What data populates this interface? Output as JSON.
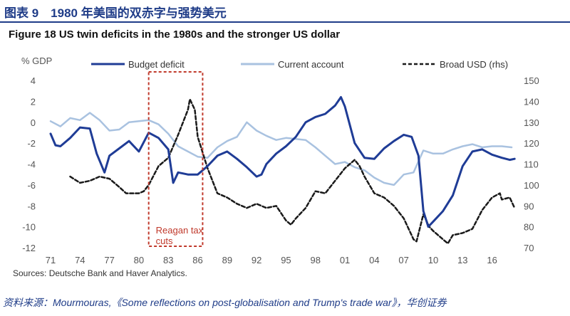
{
  "figure_title": "图表 9　1980 年美国的双赤字与强势美元",
  "source": "资料来源：Mourmouras,《Some reflections on post-globalisation and Trump's trade war》，华创证券",
  "chart_data": {
    "type": "line",
    "title": "Figure 18 US twin deficits in the 1980s and the stronger US dollar",
    "ylabel": "% GDP",
    "ylim": [
      -12,
      4
    ],
    "y_ticks": [
      "4",
      "2",
      "0",
      "-2",
      "-4",
      "-6",
      "-8",
      "-10",
      "-12"
    ],
    "y2lim": [
      70,
      150
    ],
    "y2_ticks": [
      "150",
      "140",
      "130",
      "120",
      "110",
      "100",
      "90",
      "80",
      "70"
    ],
    "xlim": [
      1971,
      2018.5
    ],
    "x_ticks": [
      "71",
      "74",
      "77",
      "80",
      "83",
      "86",
      "89",
      "92",
      "95",
      "98",
      "01",
      "04",
      "07",
      "10",
      "13",
      "16"
    ],
    "source_note": "Sources: Deutsche Bank and Haver Analytics.",
    "highlight": {
      "label": "Reagan tax cuts",
      "x_range": [
        1981,
        1986.5
      ]
    },
    "series": [
      {
        "name": "Budget deficit",
        "axis": "left",
        "color": "#1f3c96",
        "style": "solid",
        "x": [
          1971,
          1971.5,
          1972,
          1973,
          1974,
          1975,
          1975.7,
          1976.5,
          1977,
          1978,
          1979,
          1980,
          1981,
          1982,
          1983,
          1983.5,
          1984,
          1985,
          1986,
          1987,
          1988,
          1989,
          1990,
          1991,
          1992,
          1992.5,
          1993,
          1994,
          1995,
          1996,
          1997,
          1998,
          1999,
          2000,
          2000.6,
          2001,
          2002,
          2003,
          2004,
          2005,
          2006,
          2007,
          2007.8,
          2008.5,
          2009,
          2009.5,
          2010,
          2011,
          2012,
          2013,
          2014,
          2015,
          2016,
          2017,
          2017.8,
          2018.3
        ],
        "values": [
          -1.1,
          -2.2,
          -2.3,
          -1.5,
          -0.5,
          -0.6,
          -3.0,
          -4.8,
          -3.2,
          -2.5,
          -1.8,
          -2.8,
          -1.0,
          -1.5,
          -2.6,
          -5.8,
          -4.8,
          -5.0,
          -5.0,
          -4.2,
          -3.2,
          -2.8,
          -3.5,
          -4.3,
          -5.2,
          -5.0,
          -4.0,
          -3.0,
          -2.3,
          -1.4,
          0.0,
          0.5,
          0.8,
          1.6,
          2.4,
          1.5,
          -2.0,
          -3.4,
          -3.5,
          -2.5,
          -1.8,
          -1.2,
          -1.4,
          -3.2,
          -8.5,
          -10.0,
          -9.5,
          -8.5,
          -7.0,
          -4.2,
          -2.8,
          -2.6,
          -3.1,
          -3.4,
          -3.6,
          -3.5
        ]
      },
      {
        "name": "Current account",
        "axis": "left",
        "color": "#a9c2e0",
        "style": "solid",
        "x": [
          1971,
          1972,
          1973,
          1974,
          1975,
          1976,
          1977,
          1978,
          1979,
          1980,
          1981,
          1982,
          1983,
          1984,
          1985,
          1986,
          1987,
          1988,
          1989,
          1990,
          1991,
          1992,
          1993,
          1994,
          1995,
          1996,
          1997,
          1998,
          1999,
          2000,
          2001,
          2002,
          2003,
          2004,
          2005,
          2006,
          2007,
          2008,
          2009,
          2010,
          2011,
          2012,
          2013,
          2014,
          2015,
          2016,
          2017,
          2018
        ],
        "values": [
          0.1,
          -0.4,
          0.4,
          0.2,
          0.9,
          0.2,
          -0.8,
          -0.7,
          0.0,
          0.1,
          0.2,
          -0.2,
          -1.1,
          -2.3,
          -2.8,
          -3.3,
          -3.4,
          -2.4,
          -1.8,
          -1.4,
          0.0,
          -0.8,
          -1.3,
          -1.7,
          -1.5,
          -1.6,
          -1.7,
          -2.4,
          -3.2,
          -4.0,
          -3.8,
          -4.3,
          -4.6,
          -5.3,
          -5.8,
          -6.0,
          -5.0,
          -4.8,
          -2.7,
          -3.0,
          -3.0,
          -2.6,
          -2.3,
          -2.1,
          -2.4,
          -2.3,
          -2.3,
          -2.4
        ]
      },
      {
        "name": "Broad USD (rhs)",
        "axis": "right",
        "color": "#1a1a1a",
        "style": "dashed",
        "x": [
          1973,
          1974,
          1975,
          1976,
          1977,
          1978,
          1978.7,
          1979.5,
          1980,
          1980.5,
          1981,
          1982,
          1983,
          1984,
          1985,
          1985.2,
          1985.7,
          1986,
          1987,
          1988,
          1989,
          1990,
          1991,
          1992,
          1993,
          1994,
          1995,
          1995.5,
          1996,
          1997,
          1998,
          1999,
          2000,
          2001,
          2002,
          2002.5,
          2003,
          2004,
          2005,
          2006,
          2007,
          2008,
          2008.3,
          2009,
          2009.6,
          2010,
          2011,
          2011.5,
          2012,
          2013,
          2014,
          2015,
          2016,
          2016.8,
          2017,
          2017.8,
          2018.3
        ],
        "values": [
          104,
          101,
          102,
          104,
          103,
          99,
          96,
          96,
          96,
          97,
          100,
          109,
          113,
          124,
          136,
          141,
          136,
          123,
          108,
          96,
          94,
          91,
          89,
          91,
          89,
          90,
          83,
          81,
          84,
          89,
          97,
          96,
          102,
          108,
          112,
          109,
          104,
          96,
          94,
          90,
          84,
          74,
          73,
          86,
          80,
          78,
          74,
          72,
          76,
          77,
          79,
          88,
          94,
          96,
          93,
          94,
          89
        ]
      }
    ]
  }
}
